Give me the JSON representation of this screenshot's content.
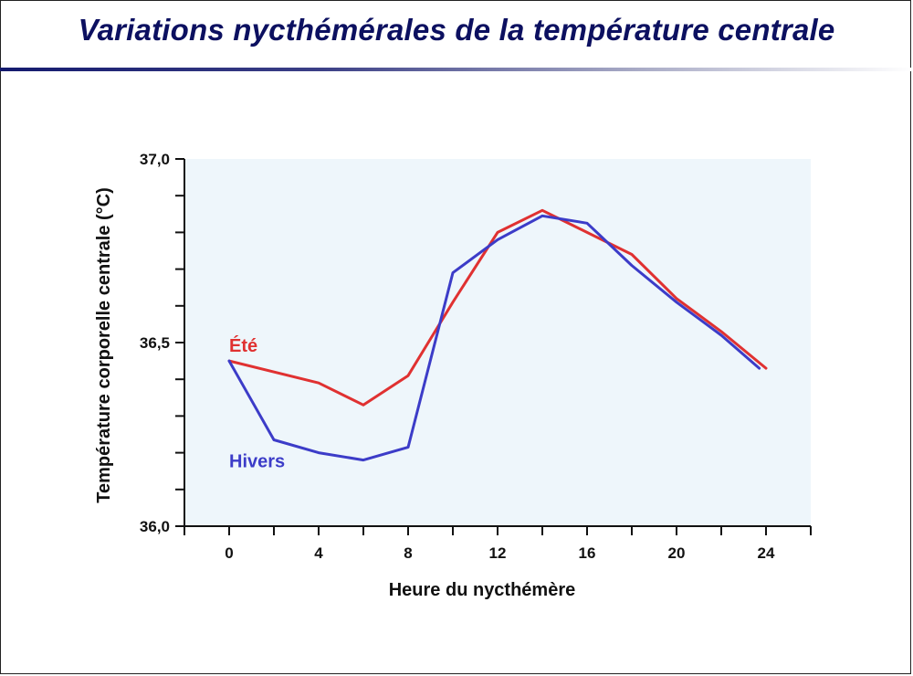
{
  "slide": {
    "title": "Variations nycthémérales de la température centrale",
    "accent_color": "#141a6e"
  },
  "chart_data": {
    "type": "line",
    "title": "",
    "xlabel": "Heure du nycthémère",
    "ylabel": "Température corporelle centrale (°C)",
    "xlim": [
      -2,
      26
    ],
    "ylim": [
      36.0,
      37.0
    ],
    "x_ticks": [
      0,
      4,
      8,
      12,
      16,
      20,
      24
    ],
    "x_minor_ticks": [
      -2,
      2,
      6,
      10,
      14,
      18,
      22,
      26
    ],
    "y_ticks": [
      {
        "value": 36.0,
        "label": "36,0"
      },
      {
        "value": 36.1,
        "label": ""
      },
      {
        "value": 36.2,
        "label": ""
      },
      {
        "value": 36.3,
        "label": ""
      },
      {
        "value": 36.4,
        "label": ""
      },
      {
        "value": 36.5,
        "label": "36,5"
      },
      {
        "value": 36.6,
        "label": ""
      },
      {
        "value": 36.7,
        "label": ""
      },
      {
        "value": 36.8,
        "label": ""
      },
      {
        "value": 36.9,
        "label": ""
      },
      {
        "value": 37.0,
        "label": "37,0"
      }
    ],
    "grid": false,
    "plot_background": "#eef6fb",
    "series": [
      {
        "name": "Été",
        "color": "#e03131",
        "x": [
          0,
          4,
          6,
          8,
          10,
          12,
          14,
          16,
          18,
          20,
          22,
          24
        ],
        "y": [
          36.45,
          36.39,
          36.33,
          36.41,
          36.61,
          36.8,
          36.86,
          36.8,
          36.74,
          36.62,
          36.53,
          36.43
        ]
      },
      {
        "name": "Hivers",
        "color": "#3c3cc8",
        "x": [
          0,
          2,
          4,
          6,
          8,
          10,
          12,
          14,
          16,
          18,
          20,
          22,
          23.7
        ],
        "y": [
          36.45,
          36.235,
          36.2,
          36.18,
          36.215,
          36.69,
          36.78,
          36.845,
          36.825,
          36.71,
          36.61,
          36.52,
          36.43
        ]
      }
    ]
  }
}
